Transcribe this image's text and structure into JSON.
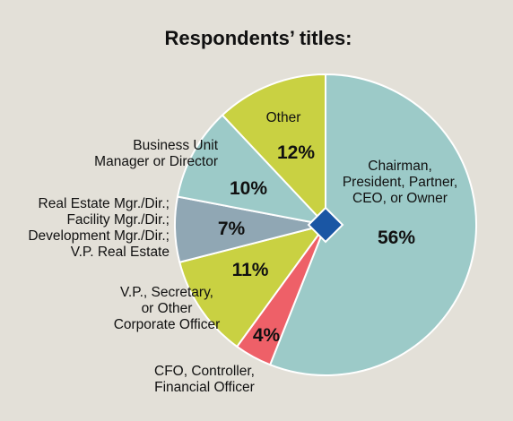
{
  "chart_data": {
    "type": "pie",
    "title": "Respondents’ titles:",
    "start_angle_deg": 0,
    "direction": "clockwise",
    "slices": [
      {
        "key": "chairman",
        "value": 56,
        "value_label": "56%",
        "label_lines": [
          "Chairman,",
          "President, Partner,",
          "CEO, or Owner"
        ],
        "color": "#9ccac8"
      },
      {
        "key": "cfo",
        "value": 4,
        "value_label": "4%",
        "label_lines": [
          "CFO, Controller,",
          "Financial Officer"
        ],
        "color": "#ee6068"
      },
      {
        "key": "vp",
        "value": 11,
        "value_label": "11%",
        "label_lines": [
          "V.P., Secretary,",
          "or Other",
          "Corporate Officer"
        ],
        "color": "#c9d142"
      },
      {
        "key": "realestate",
        "value": 7,
        "value_label": "7%",
        "label_lines": [
          "Real Estate Mgr./Dir.;",
          "Facility Mgr./Dir.;",
          "Development Mgr./Dir.;",
          "V.P. Real Estate"
        ],
        "color": "#90a7b4"
      },
      {
        "key": "business",
        "value": 10,
        "value_label": "10%",
        "label_lines": [
          "Business Unit",
          "Manager or Director"
        ],
        "color": "#9ccac8"
      },
      {
        "key": "other",
        "value": 12,
        "value_label": "12%",
        "label_lines": [
          "Other"
        ],
        "color": "#c9d142"
      }
    ],
    "center_marker_color": "#1a56a4",
    "edge_color": "#ffffff",
    "background": "#e3e0d8"
  }
}
